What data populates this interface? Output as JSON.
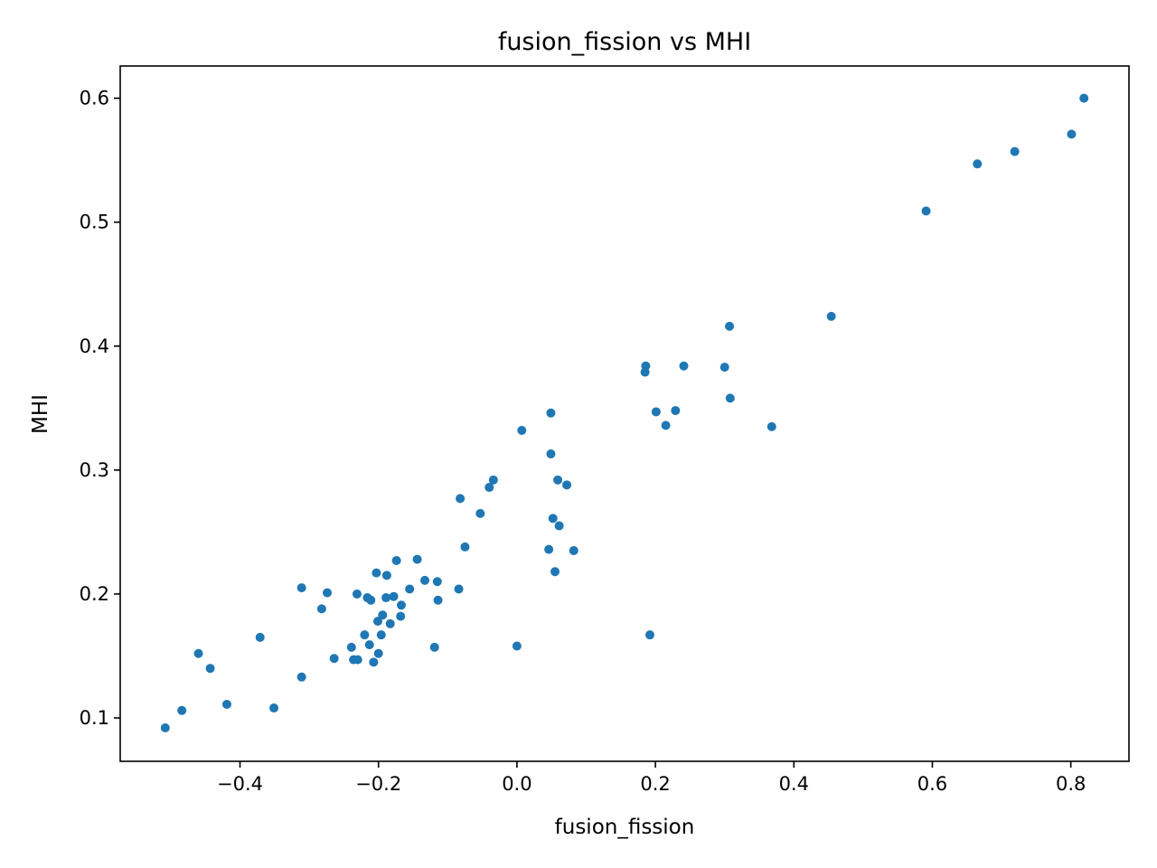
{
  "chart_data": {
    "type": "scatter",
    "title": "fusion_fission vs MHI",
    "xlabel": "fusion_fission",
    "ylabel": "MHI",
    "xlim": [
      -0.573,
      0.884
    ],
    "ylim": [
      0.065,
      0.626
    ],
    "xticks": [
      -0.4,
      -0.2,
      0.0,
      0.2,
      0.4,
      0.6,
      0.8
    ],
    "xtick_labels": [
      "−0.4",
      "−0.2",
      "0.0",
      "0.2",
      "0.4",
      "0.6",
      "0.8"
    ],
    "yticks": [
      0.1,
      0.2,
      0.3,
      0.4,
      0.5,
      0.6
    ],
    "ytick_labels": [
      "0.1",
      "0.2",
      "0.3",
      "0.4",
      "0.5",
      "0.6"
    ],
    "grid": false,
    "legend": "none",
    "marker_color": "#1f77b4",
    "points": [
      [
        -0.508,
        0.092
      ],
      [
        -0.484,
        0.106
      ],
      [
        -0.46,
        0.152
      ],
      [
        -0.443,
        0.14
      ],
      [
        -0.419,
        0.111
      ],
      [
        -0.371,
        0.165
      ],
      [
        -0.351,
        0.108
      ],
      [
        -0.311,
        0.205
      ],
      [
        -0.311,
        0.133
      ],
      [
        -0.282,
        0.188
      ],
      [
        -0.274,
        0.201
      ],
      [
        -0.264,
        0.148
      ],
      [
        -0.239,
        0.157
      ],
      [
        -0.236,
        0.147
      ],
      [
        -0.231,
        0.2
      ],
      [
        -0.23,
        0.147
      ],
      [
        -0.22,
        0.167
      ],
      [
        -0.216,
        0.197
      ],
      [
        -0.213,
        0.159
      ],
      [
        -0.211,
        0.195
      ],
      [
        -0.207,
        0.145
      ],
      [
        -0.203,
        0.217
      ],
      [
        -0.201,
        0.178
      ],
      [
        -0.2,
        0.152
      ],
      [
        -0.196,
        0.167
      ],
      [
        -0.194,
        0.183
      ],
      [
        -0.189,
        0.197
      ],
      [
        -0.188,
        0.215
      ],
      [
        -0.183,
        0.176
      ],
      [
        -0.178,
        0.198
      ],
      [
        -0.174,
        0.227
      ],
      [
        -0.168,
        0.182
      ],
      [
        -0.167,
        0.191
      ],
      [
        -0.155,
        0.204
      ],
      [
        -0.144,
        0.228
      ],
      [
        -0.133,
        0.211
      ],
      [
        -0.119,
        0.157
      ],
      [
        -0.115,
        0.21
      ],
      [
        -0.114,
        0.195
      ],
      [
        -0.084,
        0.204
      ],
      [
        -0.082,
        0.277
      ],
      [
        -0.075,
        0.238
      ],
      [
        -0.053,
        0.265
      ],
      [
        -0.04,
        0.286
      ],
      [
        -0.034,
        0.292
      ],
      [
        0.0,
        0.158
      ],
      [
        0.007,
        0.332
      ],
      [
        0.046,
        0.236
      ],
      [
        0.049,
        0.346
      ],
      [
        0.049,
        0.313
      ],
      [
        0.052,
        0.261
      ],
      [
        0.055,
        0.218
      ],
      [
        0.059,
        0.292
      ],
      [
        0.061,
        0.255
      ],
      [
        0.072,
        0.288
      ],
      [
        0.082,
        0.235
      ],
      [
        0.185,
        0.379
      ],
      [
        0.186,
        0.384
      ],
      [
        0.192,
        0.167
      ],
      [
        0.201,
        0.347
      ],
      [
        0.215,
        0.336
      ],
      [
        0.229,
        0.348
      ],
      [
        0.241,
        0.384
      ],
      [
        0.3,
        0.383
      ],
      [
        0.307,
        0.416
      ],
      [
        0.308,
        0.358
      ],
      [
        0.368,
        0.335
      ],
      [
        0.454,
        0.424
      ],
      [
        0.591,
        0.509
      ],
      [
        0.665,
        0.547
      ],
      [
        0.719,
        0.557
      ],
      [
        0.801,
        0.571
      ],
      [
        0.819,
        0.6
      ]
    ]
  }
}
